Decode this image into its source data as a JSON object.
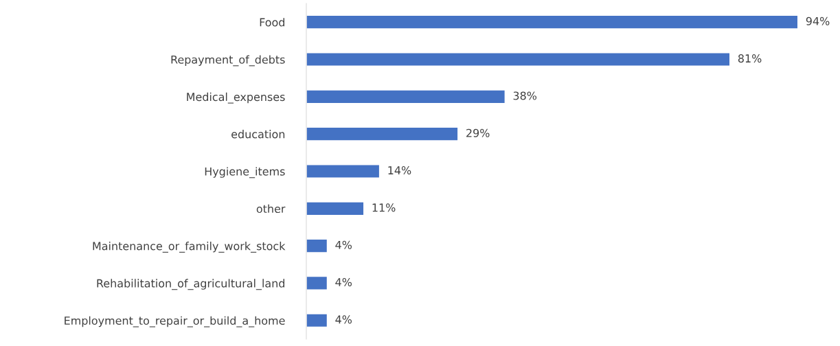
{
  "chart_data": {
    "type": "bar",
    "orientation": "horizontal",
    "categories": [
      "Food",
      "Repayment_of_debts",
      "Medical_expenses",
      "education",
      "Hygiene_items",
      "other",
      "Maintenance_or_family_work_stock",
      "Rehabilitation_of_agricultural_land",
      "Employment_to_repair_or_build_a_home"
    ],
    "values": [
      94,
      81,
      38,
      29,
      14,
      11,
      4,
      4,
      4
    ],
    "value_labels": [
      "94%",
      "81%",
      "38%",
      "29%",
      "14%",
      "11%",
      "4%",
      "4%",
      "4%"
    ],
    "color": "#4472c4",
    "grid": false,
    "legend": false
  }
}
